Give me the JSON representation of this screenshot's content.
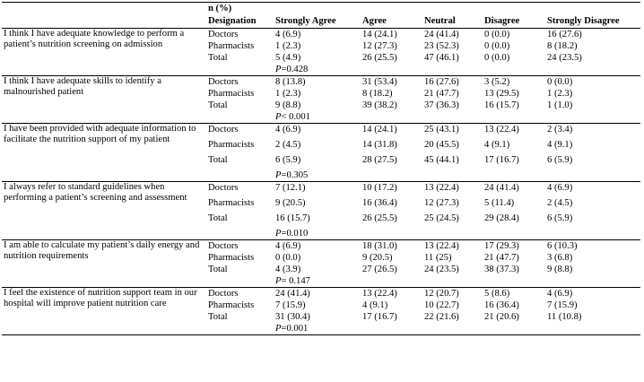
{
  "header": {
    "n_percent": "n (%)",
    "columns": [
      "Designation",
      "Strongly Agree",
      "Agree",
      "Neutral",
      "Disagree",
      "Strongly Disagree"
    ]
  },
  "rows": [
    {
      "statement": "I think I have adequate knowledge to perform a patient’s nutrition screening on admission",
      "doctors": [
        "Doctors",
        "4 (6.9)",
        "14 (24.1)",
        "24 (41.4)",
        "0 (0.0)",
        "16 (27.6)"
      ],
      "pharmacists": [
        "Pharmacists",
        "1 (2.3)",
        "12 (27.3)",
        "23 (52.3)",
        "0 (0.0)",
        "8 (18.2)"
      ],
      "total": [
        "Total",
        "5 (4.9)",
        "26 (25.5)",
        "47 (46.1)",
        "0 (0.0)",
        "24 (23.5)"
      ],
      "p_label": "P",
      "p_value": "=0.428"
    },
    {
      "statement": "I think I have adequate skills to identify a malnourished patient",
      "doctors": [
        "Doctors",
        "8 (13.8)",
        "31 (53.4)",
        "16 (27.6)",
        "3 (5.2)",
        "0 (0.0)"
      ],
      "pharmacists": [
        "Pharmacists",
        "1 (2.3)",
        "8 (18.2)",
        "21 (47.7)",
        "13 (29.5)",
        "1 (2.3)"
      ],
      "total": [
        "Total",
        "9 (8.8)",
        "39 (38.2)",
        "37 (36.3)",
        "16 (15.7)",
        "1 (1.0)"
      ],
      "p_label": "P",
      "p_value": "< 0.001"
    },
    {
      "statement": "I have been provided with adequate information to facilitate the nutrition support of my patient",
      "doctors": [
        "Doctors",
        "4 (6.9)",
        "14 (24.1)",
        "25 (43.1)",
        "13 (22.4)",
        "2 (3.4)"
      ],
      "pharmacists": [
        "Pharmacists",
        "2 (4.5)",
        "14 (31.8)",
        "20 (45.5)",
        "4 (9.1)",
        "4 (9.1)"
      ],
      "total": [
        "Total",
        "6 (5.9)",
        "28 (27.5)",
        "45 (44.1)",
        "17 (16.7)",
        "6 (5.9)"
      ],
      "p_label": "P",
      "p_value": "=0.305"
    },
    {
      "statement": "I always refer to standard guidelines when performing a patient’s screening and assessment",
      "doctors": [
        "Doctors",
        "7 (12.1)",
        "10 (17.2)",
        "13 (22.4)",
        "24 (41.4)",
        "4 (6.9)"
      ],
      "pharmacists": [
        "Pharmacists",
        "9 (20.5)",
        "16 (36.4)",
        "12 (27.3)",
        "5 (11.4)",
        "2 (4.5)"
      ],
      "total": [
        "Total",
        "16 (15.7)",
        "26 (25.5)",
        "25 (24.5)",
        "29 (28.4)",
        "6 (5.9)"
      ],
      "p_label": "P",
      "p_value": "=0.010"
    },
    {
      "statement": "I am able to calculate my patient’s daily energy and nutrition requirements",
      "doctors": [
        "Doctors",
        "4 (6.9)",
        "18 (31.0)",
        "13 (22.4)",
        "17 (29.3)",
        "6 (10.3)"
      ],
      "pharmacists": [
        "Pharmacists",
        "0 (0.0)",
        "9 (20.5)",
        "11 (25)",
        "21 (47.7)",
        "3 (6.8)"
      ],
      "total": [
        "Total",
        "4 (3.9)",
        "27 (26.5)",
        "24 (23.5)",
        "38 (37.3)",
        "9 (8.8)"
      ],
      "p_label": "P",
      "p_value": "= 0.147"
    },
    {
      "statement": "I feel the existence of nutrition support team in our hospital will improve patient nutrition care",
      "doctors": [
        "Doctors",
        "24 (41.4)",
        "13 (22.4)",
        "12 (20.7)",
        "5 (8.6)",
        "4 (6.9)"
      ],
      "pharmacists": [
        "Pharmacists",
        "7 (15.9)",
        "4 (9.1)",
        "10 (22.7)",
        "16 (36.4)",
        "7 (15.9)"
      ],
      "total": [
        "Total",
        "31 (30.4)",
        "17 (16.7)",
        "22 (21.6)",
        "21 (20.6)",
        "11 (10.8)"
      ],
      "p_label": "P",
      "p_value": "=0.001"
    }
  ]
}
